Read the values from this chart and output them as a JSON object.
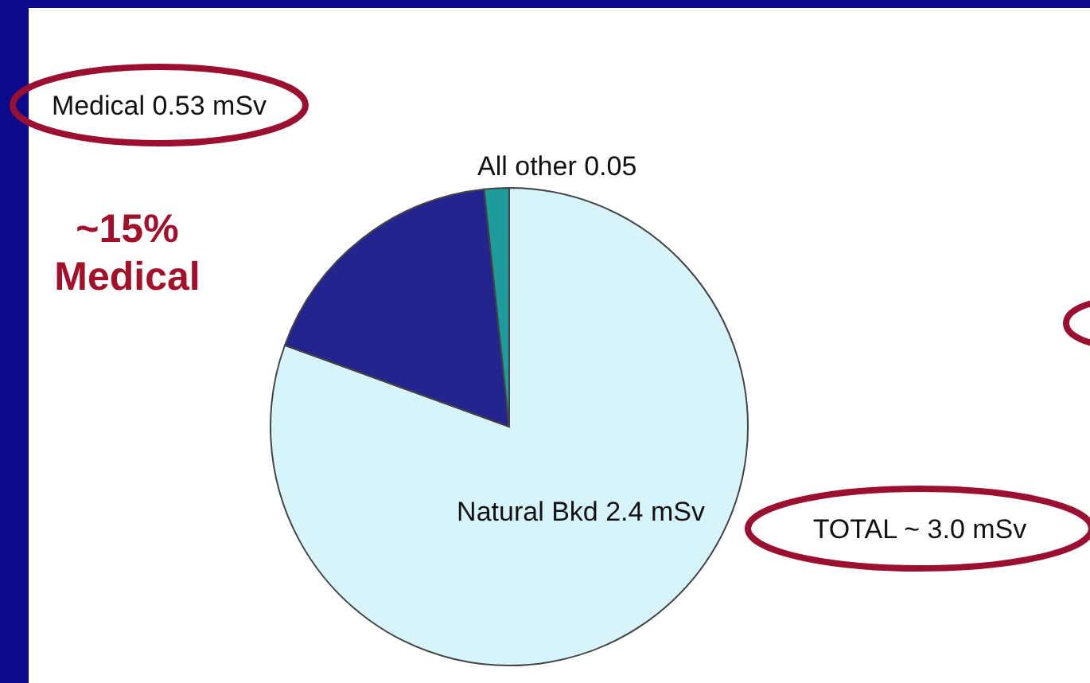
{
  "chart_data": {
    "type": "pie",
    "categories": [
      "Natural Bkd",
      "Medical",
      "All other"
    ],
    "values": [
      2.4,
      0.53,
      0.05
    ],
    "value_labels": [
      "2.4 mSv",
      "0.53 mSv",
      "0.05"
    ],
    "colors": [
      "#d8f4fb",
      "#24248f",
      "#1e9c9c"
    ],
    "annotations": [
      "~15% Medical",
      "TOTAL ~ 3.0 mSv"
    ],
    "legend": false
  }
}
